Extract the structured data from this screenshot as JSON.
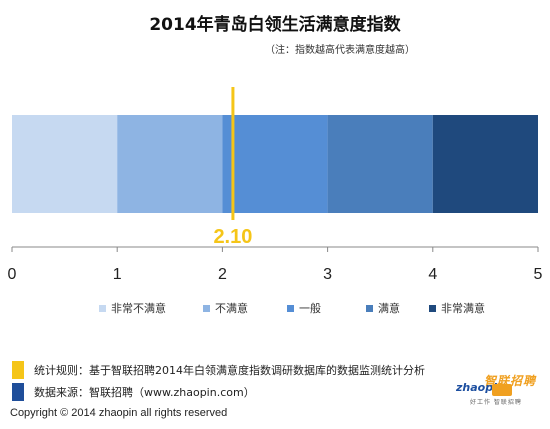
{
  "title": "2014年青岛白领生活满意度指数",
  "subtitle": "（注：指数越高代表满意度越高）",
  "chart_data": {
    "type": "bar",
    "orientation": "horizontal",
    "x_range": [
      0,
      5
    ],
    "ticks": [
      0,
      1,
      2,
      3,
      4,
      5
    ],
    "tick_labels": [
      "0",
      "1",
      "2",
      "3",
      "4",
      "5"
    ],
    "segments": [
      {
        "name": "非常不满意",
        "start": 0,
        "end": 1,
        "color": "#c6d9f1"
      },
      {
        "name": "不满意",
        "start": 1,
        "end": 2,
        "color": "#8eb4e3"
      },
      {
        "name": "一般",
        "start": 2,
        "end": 3,
        "color": "#558ed5"
      },
      {
        "name": "满意",
        "start": 3,
        "end": 4,
        "color": "#4a7ebb"
      },
      {
        "name": "非常满意",
        "start": 4,
        "end": 5,
        "color": "#1f497d"
      }
    ],
    "marker": {
      "value": 2.1,
      "label": "2.10",
      "color": "#f5c518"
    },
    "legend_position": "bottom"
  },
  "notes": [
    {
      "text": "统计规则：基于智联招聘2014年白领满意度指数调研数据库的数据监测统计分析",
      "color": "#f5c518"
    },
    {
      "text": "数据来源：智联招聘（www.zhaopin.com）",
      "color": "#1f4e9a"
    }
  ],
  "copyright": "Copyright  ©  2014  zhaopin all rights reserved",
  "logo": {
    "cn": "智联招聘",
    "en": "zhaopin",
    "tag": "好工作  智联招聘"
  }
}
